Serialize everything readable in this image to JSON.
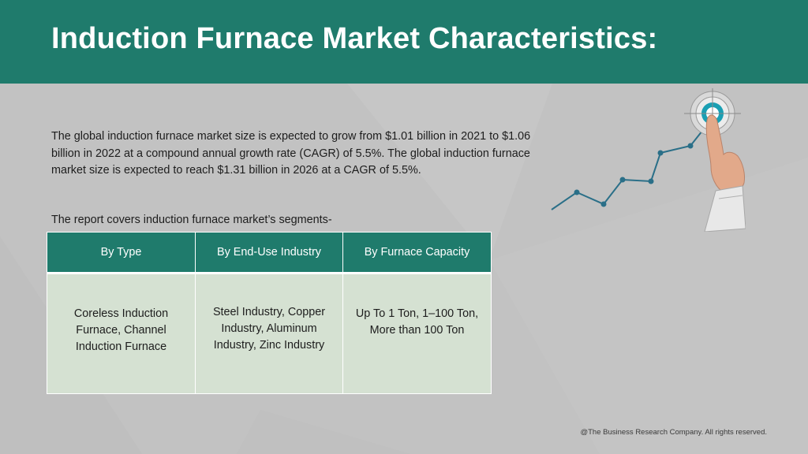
{
  "header": {
    "title": "Induction Furnace Market Characteristics:"
  },
  "intro": {
    "paragraph": "The global induction furnace market size is expected to grow from $1.01 billion in 2021 to $1.06 billion in 2022 at a compound annual growth rate (CAGR) of 5.5%. The global induction furnace market size is expected to reach $1.31 billion in 2026 at a CAGR of 5.5%.",
    "segments_label": "The report covers induction furnace market’s segments-"
  },
  "segments_table": {
    "headers": [
      "By Type",
      "By End-Use Industry",
      "By Furnace Capacity"
    ],
    "cells": [
      "Coreless Induction Furnace, Channel Induction Furnace",
      "Steel Industry, Copper Industry, Aluminum Industry, Zinc Industry",
      "Up To 1 Ton, 1–100 Ton, More than 100 Ton"
    ]
  },
  "graphic": {
    "icon": "growth-chart-target-hand-icon",
    "accent_color": "#2a6f88",
    "target_color": "#1a9fb3"
  },
  "footer": {
    "copyright": "@The Business Research Company. All rights reserved."
  },
  "colors": {
    "header_bg": "#1f7b6c",
    "background": "#c2c2c2",
    "table_cell_bg": "#d5e1d2"
  }
}
